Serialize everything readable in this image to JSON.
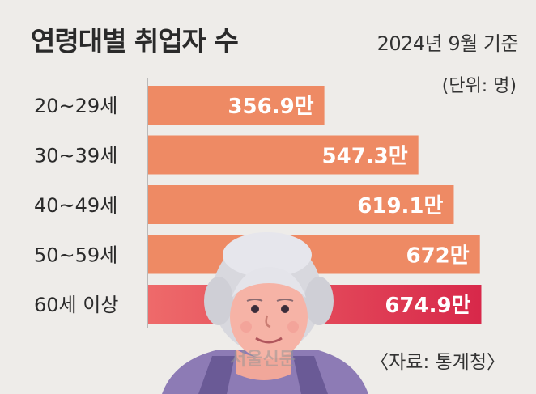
{
  "header": {
    "title": "연령대별 취업자 수",
    "basis": "2024년 9월 기준",
    "unit": "(단위: 명)"
  },
  "footer": {
    "source": "〈자료: 통계청〉",
    "watermark": "서울신문"
  },
  "colors": {
    "bar": "#ee8a64",
    "highlight_start": "#ee6a6a",
    "highlight_end": "#d8284a",
    "axis": "#b9b9b9"
  },
  "chart_data": {
    "type": "bar",
    "orientation": "horizontal",
    "title": "연령대별 취업자 수",
    "categories": [
      "20~29세",
      "30~39세",
      "40~49세",
      "50~59세",
      "60세 이상"
    ],
    "values": [
      356.9,
      547.3,
      619.1,
      672,
      674.9
    ],
    "value_labels": [
      "356.9만",
      "547.3만",
      "619.1만",
      "672만",
      "674.9만"
    ],
    "highlight_index": 4,
    "xlim": [
      0,
      700
    ],
    "grid": false
  }
}
